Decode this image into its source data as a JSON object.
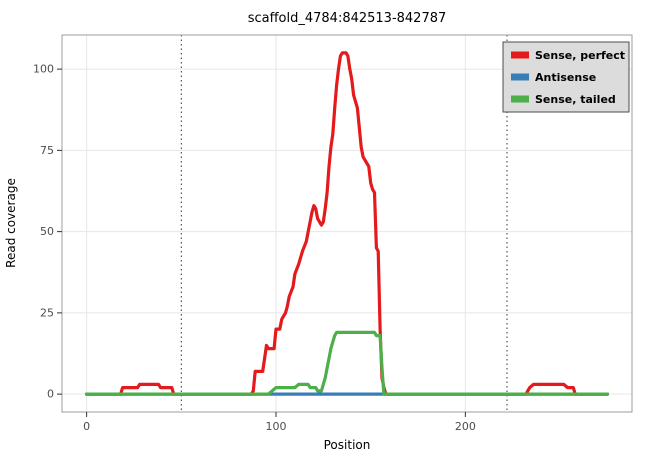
{
  "chart_data": {
    "type": "line",
    "title": "scaffold_4784:842513-842787",
    "xlabel": "Position",
    "ylabel": "Read coverage",
    "xlim": [
      -13,
      288
    ],
    "ylim": [
      -5.5,
      110.5
    ],
    "x_ticks": [
      0,
      100,
      200
    ],
    "y_ticks": [
      0,
      25,
      50,
      75,
      100
    ],
    "grid": true,
    "line_width": 3.2,
    "vlines": {
      "positions": [
        50,
        222
      ],
      "style": "dotted",
      "color": "#333333"
    },
    "legend": {
      "position": "top-right",
      "background": "#dcdcdc",
      "border": "#4d4d4d",
      "entries": [
        "Sense, perfect",
        "Antisense",
        "Sense, tailed"
      ]
    },
    "style": {
      "plot_bg": "#ffffff",
      "grid_color": "#e6e6e6",
      "panel_border": "#9e9e9e",
      "tick_color": "#333333",
      "tick_label_color": "#4d4d4d"
    },
    "series": [
      {
        "name": "Sense, perfect",
        "color": "#e41a1c",
        "points": [
          [
            0,
            0
          ],
          [
            18,
            0
          ],
          [
            19,
            2
          ],
          [
            27,
            2
          ],
          [
            28,
            3
          ],
          [
            38,
            3
          ],
          [
            39,
            2
          ],
          [
            45,
            2
          ],
          [
            46,
            0
          ],
          [
            87,
            0
          ],
          [
            88,
            1
          ],
          [
            89,
            7
          ],
          [
            93,
            7
          ],
          [
            94,
            11
          ],
          [
            95,
            15
          ],
          [
            96,
            14
          ],
          [
            99,
            14
          ],
          [
            100,
            20
          ],
          [
            102,
            20
          ],
          [
            103,
            23
          ],
          [
            104,
            24
          ],
          [
            105,
            25
          ],
          [
            106,
            27
          ],
          [
            107,
            30
          ],
          [
            109,
            33
          ],
          [
            110,
            37
          ],
          [
            112,
            40
          ],
          [
            113,
            42
          ],
          [
            114,
            44
          ],
          [
            116,
            47
          ],
          [
            117,
            50
          ],
          [
            118,
            53
          ],
          [
            119,
            56
          ],
          [
            120,
            58
          ],
          [
            121,
            57
          ],
          [
            122,
            54
          ],
          [
            124,
            52
          ],
          [
            125,
            53
          ],
          [
            126,
            57
          ],
          [
            127,
            62
          ],
          [
            128,
            70
          ],
          [
            129,
            76
          ],
          [
            130,
            80
          ],
          [
            131,
            88
          ],
          [
            132,
            95
          ],
          [
            133,
            100
          ],
          [
            134,
            104
          ],
          [
            135,
            105
          ],
          [
            137,
            105
          ],
          [
            138,
            104
          ],
          [
            139,
            100
          ],
          [
            140,
            97
          ],
          [
            141,
            92
          ],
          [
            142,
            90
          ],
          [
            143,
            88
          ],
          [
            144,
            82
          ],
          [
            145,
            76
          ],
          [
            146,
            73
          ],
          [
            147,
            72
          ],
          [
            149,
            70
          ],
          [
            150,
            65
          ],
          [
            151,
            63
          ],
          [
            152,
            62
          ],
          [
            153,
            45
          ],
          [
            154,
            44
          ],
          [
            155,
            20
          ],
          [
            156,
            5
          ],
          [
            157,
            2
          ],
          [
            158,
            0
          ],
          [
            232,
            0
          ],
          [
            234,
            2
          ],
          [
            236,
            3
          ],
          [
            252,
            3
          ],
          [
            254,
            2
          ],
          [
            257,
            2
          ],
          [
            258,
            0
          ],
          [
            275,
            0
          ]
        ]
      },
      {
        "name": "Antisense",
        "color": "#377eb8",
        "points": [
          [
            0,
            0
          ],
          [
            275,
            0
          ]
        ]
      },
      {
        "name": "Sense, tailed",
        "color": "#4daf4a",
        "points": [
          [
            0,
            0
          ],
          [
            96,
            0
          ],
          [
            98,
            1
          ],
          [
            100,
            2
          ],
          [
            110,
            2
          ],
          [
            112,
            3
          ],
          [
            117,
            3
          ],
          [
            118,
            2
          ],
          [
            121,
            2
          ],
          [
            122,
            1
          ],
          [
            124,
            1
          ],
          [
            125,
            3
          ],
          [
            126,
            5
          ],
          [
            127,
            8
          ],
          [
            128,
            11
          ],
          [
            129,
            14
          ],
          [
            130,
            16
          ],
          [
            131,
            18
          ],
          [
            132,
            19
          ],
          [
            152,
            19
          ],
          [
            153,
            18
          ],
          [
            155,
            18
          ],
          [
            156,
            8
          ],
          [
            157,
            0
          ],
          [
            275,
            0
          ]
        ]
      }
    ]
  }
}
